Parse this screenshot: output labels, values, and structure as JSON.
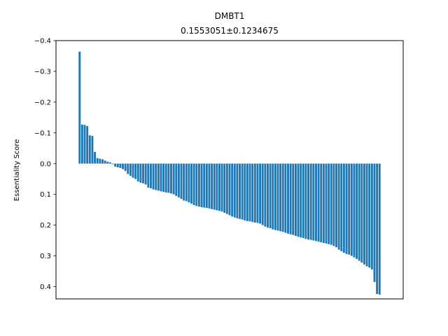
{
  "chart_data": {
    "type": "bar",
    "title": "DMBT1",
    "subtitle": "0.1553051±0.1234675",
    "xlabel": "",
    "ylabel": "Essentiality Score",
    "ylim": [
      0.44,
      -0.4
    ],
    "y_inverted": true,
    "yticks": [
      -0.4,
      -0.3,
      -0.2,
      -0.1,
      0.0,
      0.1,
      0.2,
      0.3,
      0.4
    ],
    "ytick_labels": [
      "−0.4",
      "−0.3",
      "−0.2",
      "−0.1",
      "0.0",
      "0.1",
      "0.2",
      "0.3",
      "0.4"
    ],
    "show_xticks": false,
    "grid": false,
    "bar_color": "#1f77b4",
    "values": [
      -0.364,
      -0.127,
      -0.126,
      -0.122,
      -0.092,
      -0.09,
      -0.038,
      -0.018,
      -0.016,
      -0.014,
      -0.01,
      -0.006,
      -0.004,
      0.002,
      0.01,
      0.012,
      0.014,
      0.018,
      0.024,
      0.034,
      0.04,
      0.046,
      0.05,
      0.058,
      0.062,
      0.064,
      0.068,
      0.078,
      0.08,
      0.084,
      0.086,
      0.088,
      0.09,
      0.092,
      0.094,
      0.095,
      0.097,
      0.1,
      0.105,
      0.11,
      0.115,
      0.12,
      0.122,
      0.126,
      0.13,
      0.135,
      0.138,
      0.14,
      0.142,
      0.143,
      0.144,
      0.146,
      0.148,
      0.15,
      0.152,
      0.154,
      0.156,
      0.16,
      0.164,
      0.168,
      0.172,
      0.175,
      0.178,
      0.18,
      0.182,
      0.185,
      0.187,
      0.188,
      0.19,
      0.192,
      0.193,
      0.195,
      0.2,
      0.205,
      0.208,
      0.21,
      0.214,
      0.216,
      0.218,
      0.22,
      0.222,
      0.225,
      0.228,
      0.23,
      0.232,
      0.235,
      0.238,
      0.24,
      0.242,
      0.245,
      0.247,
      0.248,
      0.25,
      0.252,
      0.254,
      0.256,
      0.258,
      0.26,
      0.262,
      0.264,
      0.268,
      0.272,
      0.28,
      0.285,
      0.29,
      0.294,
      0.296,
      0.3,
      0.305,
      0.31,
      0.316,
      0.322,
      0.328,
      0.334,
      0.338,
      0.344,
      0.385,
      0.424,
      0.426
    ]
  }
}
